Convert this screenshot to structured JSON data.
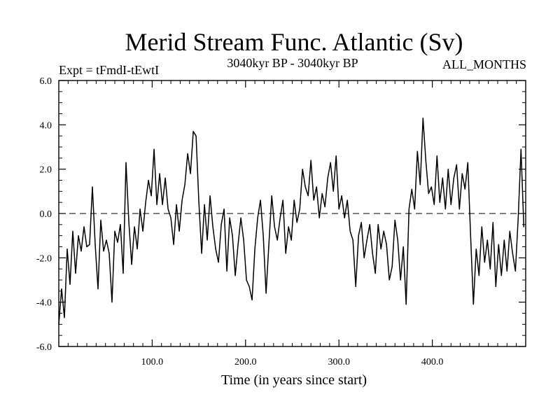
{
  "chart_data": {
    "type": "line",
    "title": "Merid Stream Func. Atlantic (Sv)",
    "subtitle_left": "Expt = tFmdI-tEwtI",
    "subtitle_center": "3040kyr BP - 3040kyr BP",
    "subtitle_right": "ALL_MONTHS",
    "xlabel": "Time (in years since start)",
    "ylabel": "",
    "xlim": [
      0,
      500
    ],
    "ylim": [
      -6,
      6
    ],
    "grid": false,
    "reference_line": 0,
    "x_ticks": [
      {
        "value": 100,
        "label": "100.0"
      },
      {
        "value": 200,
        "label": "200.0"
      },
      {
        "value": 300,
        "label": "300.0"
      },
      {
        "value": 400,
        "label": "400.0"
      }
    ],
    "y_ticks": [
      {
        "value": 6,
        "label": "6.0"
      },
      {
        "value": 4,
        "label": "4.0"
      },
      {
        "value": 2,
        "label": "2.0"
      },
      {
        "value": 0,
        "label": "0.0"
      },
      {
        "value": -2,
        "label": "-2.0"
      },
      {
        "value": -4,
        "label": "-4.0"
      },
      {
        "value": -6,
        "label": "-6.0"
      }
    ],
    "series": [
      {
        "name": "Merid Stream Func. Atlantic",
        "points": [
          [
            0,
            -5.0
          ],
          [
            3,
            -3.4
          ],
          [
            6,
            -4.7
          ],
          [
            9,
            -1.6
          ],
          [
            12,
            -3.2
          ],
          [
            15,
            -0.8
          ],
          [
            18,
            -2.7
          ],
          [
            21,
            -1.0
          ],
          [
            24,
            -1.7
          ],
          [
            27,
            -0.6
          ],
          [
            30,
            -1.5
          ],
          [
            33,
            -1.4
          ],
          [
            36,
            1.2
          ],
          [
            39,
            -1.4
          ],
          [
            42,
            -3.4
          ],
          [
            45,
            -0.3
          ],
          [
            48,
            -1.7
          ],
          [
            51,
            -1.2
          ],
          [
            54,
            -1.8
          ],
          [
            57,
            -4.0
          ],
          [
            60,
            -0.8
          ],
          [
            63,
            -1.3
          ],
          [
            66,
            -0.5
          ],
          [
            69,
            -2.7
          ],
          [
            72,
            2.3
          ],
          [
            75,
            -0.4
          ],
          [
            78,
            -2.3
          ],
          [
            81,
            -0.6
          ],
          [
            84,
            -1.6
          ],
          [
            87,
            0.2
          ],
          [
            90,
            -0.8
          ],
          [
            93,
            0.5
          ],
          [
            96,
            1.5
          ],
          [
            99,
            0.8
          ],
          [
            102,
            2.9
          ],
          [
            105,
            0.4
          ],
          [
            108,
            1.8
          ],
          [
            111,
            0.4
          ],
          [
            114,
            1.6
          ],
          [
            117,
            0.2
          ],
          [
            120,
            -0.2
          ],
          [
            123,
            -1.4
          ],
          [
            126,
            0.4
          ],
          [
            129,
            -0.8
          ],
          [
            132,
            0.6
          ],
          [
            135,
            1.3
          ],
          [
            138,
            2.7
          ],
          [
            141,
            1.8
          ],
          [
            144,
            3.7
          ],
          [
            147,
            3.5
          ],
          [
            150,
            0.5
          ],
          [
            153,
            -1.8
          ],
          [
            156,
            0.4
          ],
          [
            159,
            -1.2
          ],
          [
            162,
            0.8
          ],
          [
            165,
            -0.6
          ],
          [
            168,
            -1.6
          ],
          [
            171,
            -2.2
          ],
          [
            174,
            -0.5
          ],
          [
            177,
            0.2
          ],
          [
            180,
            -2.6
          ],
          [
            183,
            -0.2
          ],
          [
            186,
            -1.0
          ],
          [
            189,
            -2.8
          ],
          [
            192,
            -1.4
          ],
          [
            195,
            -0.2
          ],
          [
            198,
            -1.2
          ],
          [
            201,
            -3.0
          ],
          [
            204,
            -3.3
          ],
          [
            207,
            -3.9
          ],
          [
            210,
            -1.6
          ],
          [
            213,
            -0.2
          ],
          [
            216,
            0.6
          ],
          [
            219,
            -1.0
          ],
          [
            222,
            -3.6
          ],
          [
            225,
            -1.4
          ],
          [
            228,
            0.8
          ],
          [
            231,
            -0.6
          ],
          [
            234,
            -1.2
          ],
          [
            237,
            -0.2
          ],
          [
            240,
            0.6
          ],
          [
            243,
            -1.8
          ],
          [
            246,
            -0.6
          ],
          [
            249,
            -1.2
          ],
          [
            252,
            0.6
          ],
          [
            255,
            -0.4
          ],
          [
            258,
            0.2
          ],
          [
            261,
            2.0
          ],
          [
            264,
            1.2
          ],
          [
            267,
            0.8
          ],
          [
            270,
            2.4
          ],
          [
            273,
            0.6
          ],
          [
            276,
            1.2
          ],
          [
            279,
            -0.2
          ],
          [
            282,
            0.9
          ],
          [
            285,
            0.3
          ],
          [
            288,
            1.6
          ],
          [
            291,
            2.3
          ],
          [
            294,
            1.0
          ],
          [
            297,
            2.6
          ],
          [
            300,
            0.2
          ],
          [
            303,
            0.8
          ],
          [
            306,
            -0.2
          ],
          [
            309,
            0.6
          ],
          [
            312,
            -0.8
          ],
          [
            315,
            -1.2
          ],
          [
            318,
            -3.3
          ],
          [
            321,
            -1.0
          ],
          [
            324,
            -0.4
          ],
          [
            327,
            -2.0
          ],
          [
            330,
            -1.2
          ],
          [
            333,
            -0.5
          ],
          [
            336,
            -1.8
          ],
          [
            339,
            -2.7
          ],
          [
            342,
            -0.5
          ],
          [
            345,
            -1.6
          ],
          [
            348,
            -0.8
          ],
          [
            351,
            -1.4
          ],
          [
            354,
            -3.0
          ],
          [
            357,
            -2.4
          ],
          [
            360,
            -0.3
          ],
          [
            363,
            -1.2
          ],
          [
            366,
            -3.0
          ],
          [
            369,
            -1.5
          ],
          [
            372,
            -4.1
          ],
          [
            375,
            0.2
          ],
          [
            378,
            1.1
          ],
          [
            381,
            0.2
          ],
          [
            384,
            2.8
          ],
          [
            387,
            1.3
          ],
          [
            390,
            4.3
          ],
          [
            393,
            2.4
          ],
          [
            396,
            0.9
          ],
          [
            399,
            1.2
          ],
          [
            402,
            0.4
          ],
          [
            405,
            2.6
          ],
          [
            408,
            0.5
          ],
          [
            411,
            1.6
          ],
          [
            414,
            0.2
          ],
          [
            417,
            2.0
          ],
          [
            420,
            0.4
          ],
          [
            423,
            1.6
          ],
          [
            426,
            2.2
          ],
          [
            429,
            0.2
          ],
          [
            432,
            1.8
          ],
          [
            435,
            1.1
          ],
          [
            438,
            2.3
          ],
          [
            441,
            -1.0
          ],
          [
            444,
            -4.1
          ],
          [
            447,
            -1.6
          ],
          [
            450,
            -2.8
          ],
          [
            453,
            -0.6
          ],
          [
            456,
            -2.2
          ],
          [
            459,
            -1.2
          ],
          [
            462,
            -2.5
          ],
          [
            465,
            -0.4
          ],
          [
            468,
            -3.3
          ],
          [
            471,
            -1.4
          ],
          [
            474,
            -2.8
          ],
          [
            477,
            -1.2
          ],
          [
            480,
            -2.6
          ],
          [
            483,
            -0.8
          ],
          [
            486,
            -1.8
          ],
          [
            489,
            -2.6
          ],
          [
            492,
            -0.2
          ],
          [
            495,
            2.9
          ],
          [
            498,
            -0.6
          ],
          [
            501,
            0.1
          ]
        ]
      }
    ]
  }
}
